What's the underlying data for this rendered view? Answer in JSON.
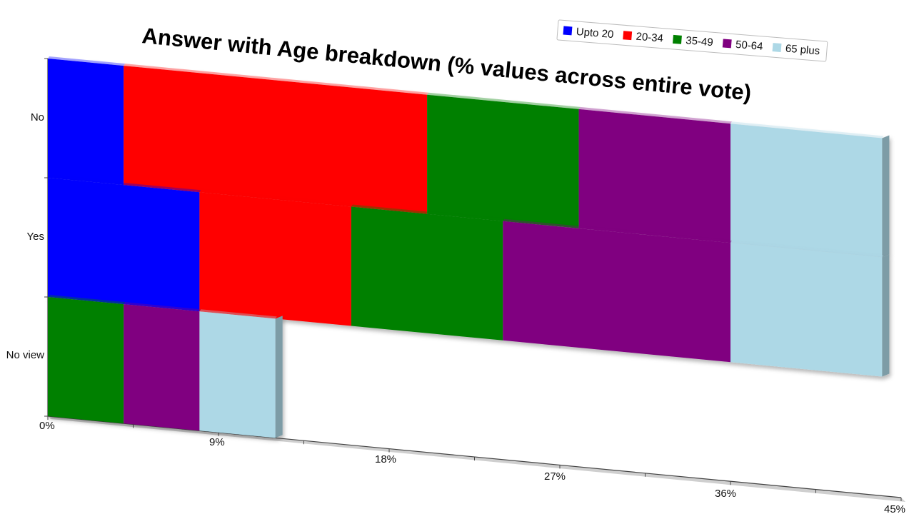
{
  "chart_data": {
    "type": "bar",
    "orientation": "horizontal",
    "stacked": true,
    "title": "Answer with Age breakdown (% values across entire vote)",
    "xlabel": "",
    "ylabel": "",
    "xlim": [
      0,
      45
    ],
    "x_ticks": [
      "0%",
      "9%",
      "18%",
      "27%",
      "36%",
      "45%"
    ],
    "categories": [
      "No",
      "Yes",
      "No view"
    ],
    "legend_position": "top-right",
    "series": [
      {
        "name": "Upto 20",
        "color": "#0000ff",
        "values": [
          4,
          8,
          0
        ]
      },
      {
        "name": "20-34",
        "color": "#ff0000",
        "values": [
          16,
          8,
          0
        ]
      },
      {
        "name": "35-49",
        "color": "#008000",
        "values": [
          8,
          8,
          4
        ]
      },
      {
        "name": "50-64",
        "color": "#800080",
        "values": [
          8,
          12,
          4
        ]
      },
      {
        "name": "65 plus",
        "color": "#add8e6",
        "values": [
          8,
          8,
          4
        ]
      }
    ]
  }
}
